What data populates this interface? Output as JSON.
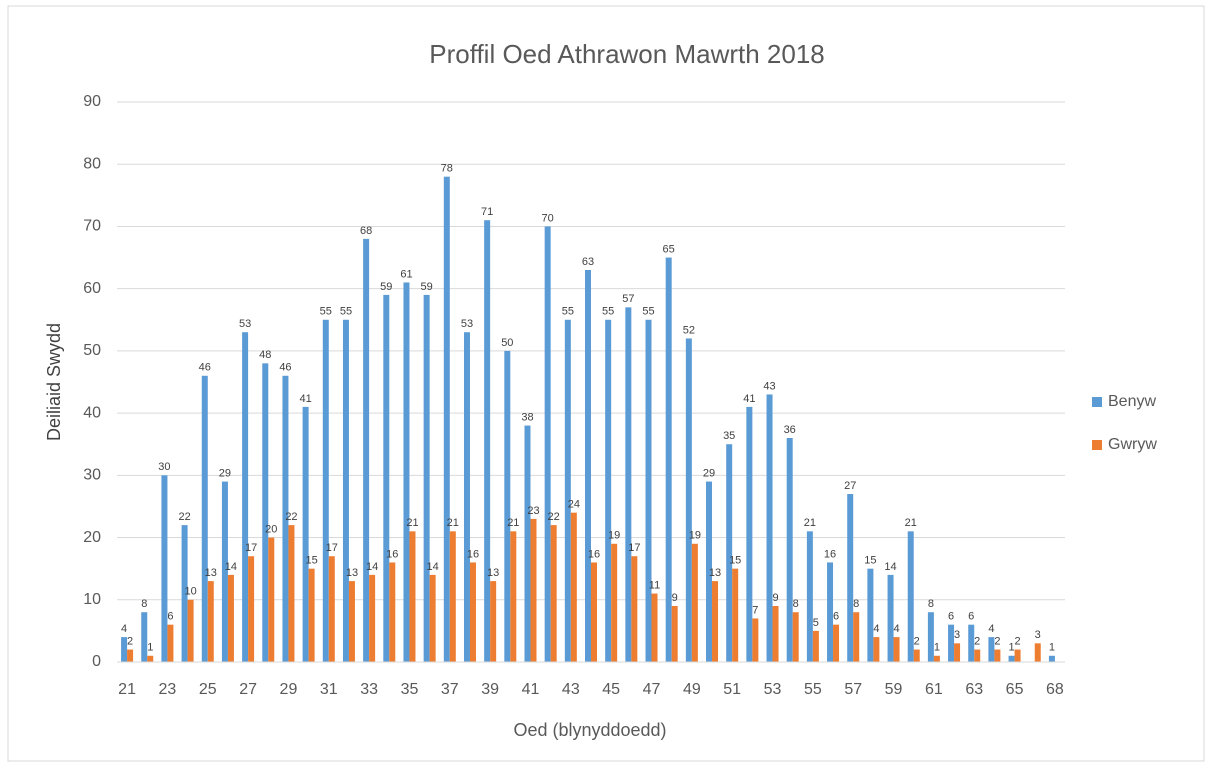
{
  "chart_data": {
    "type": "bar",
    "title": "Proffil Oed Athrawon Mawrth 2018",
    "x_label": "Oed (blynyddoedd)",
    "y_label": "Deiliaid Swydd",
    "categories": [
      "21",
      null,
      "23",
      null,
      "25",
      null,
      "27",
      null,
      "29",
      null,
      "31",
      null,
      "33",
      null,
      "35",
      null,
      "37",
      null,
      "39",
      null,
      "41",
      null,
      "43",
      null,
      "45",
      null,
      "47",
      null,
      "49",
      null,
      "51",
      null,
      "53",
      null,
      "55",
      null,
      "57",
      null,
      "59",
      null,
      "61",
      null,
      "63",
      null,
      "65",
      null,
      "68"
    ],
    "series": [
      {
        "name": "Benyw",
        "color": "#5b9bd5",
        "values": [
          4,
          8,
          30,
          22,
          46,
          29,
          53,
          48,
          46,
          41,
          55,
          55,
          68,
          59,
          61,
          59,
          78,
          53,
          71,
          50,
          38,
          70,
          55,
          63,
          55,
          57,
          55,
          65,
          52,
          29,
          35,
          41,
          43,
          36,
          21,
          16,
          27,
          15,
          14,
          21,
          8,
          6,
          6,
          4,
          1,
          0,
          1
        ]
      },
      {
        "name": "Gwryw",
        "color": "#ed7d31",
        "values": [
          2,
          1,
          6,
          10,
          13,
          14,
          17,
          20,
          22,
          15,
          17,
          13,
          14,
          16,
          21,
          14,
          21,
          16,
          13,
          21,
          23,
          22,
          24,
          16,
          19,
          17,
          11,
          9,
          19,
          13,
          15,
          7,
          9,
          8,
          5,
          6,
          8,
          4,
          4,
          2,
          1,
          3,
          2,
          2,
          2,
          3,
          0
        ]
      }
    ],
    "ylim": [
      0,
      90
    ],
    "yticks": [
      0,
      10,
      20,
      30,
      40,
      50,
      60,
      70,
      80,
      90
    ],
    "grid": true,
    "legend": "right"
  }
}
